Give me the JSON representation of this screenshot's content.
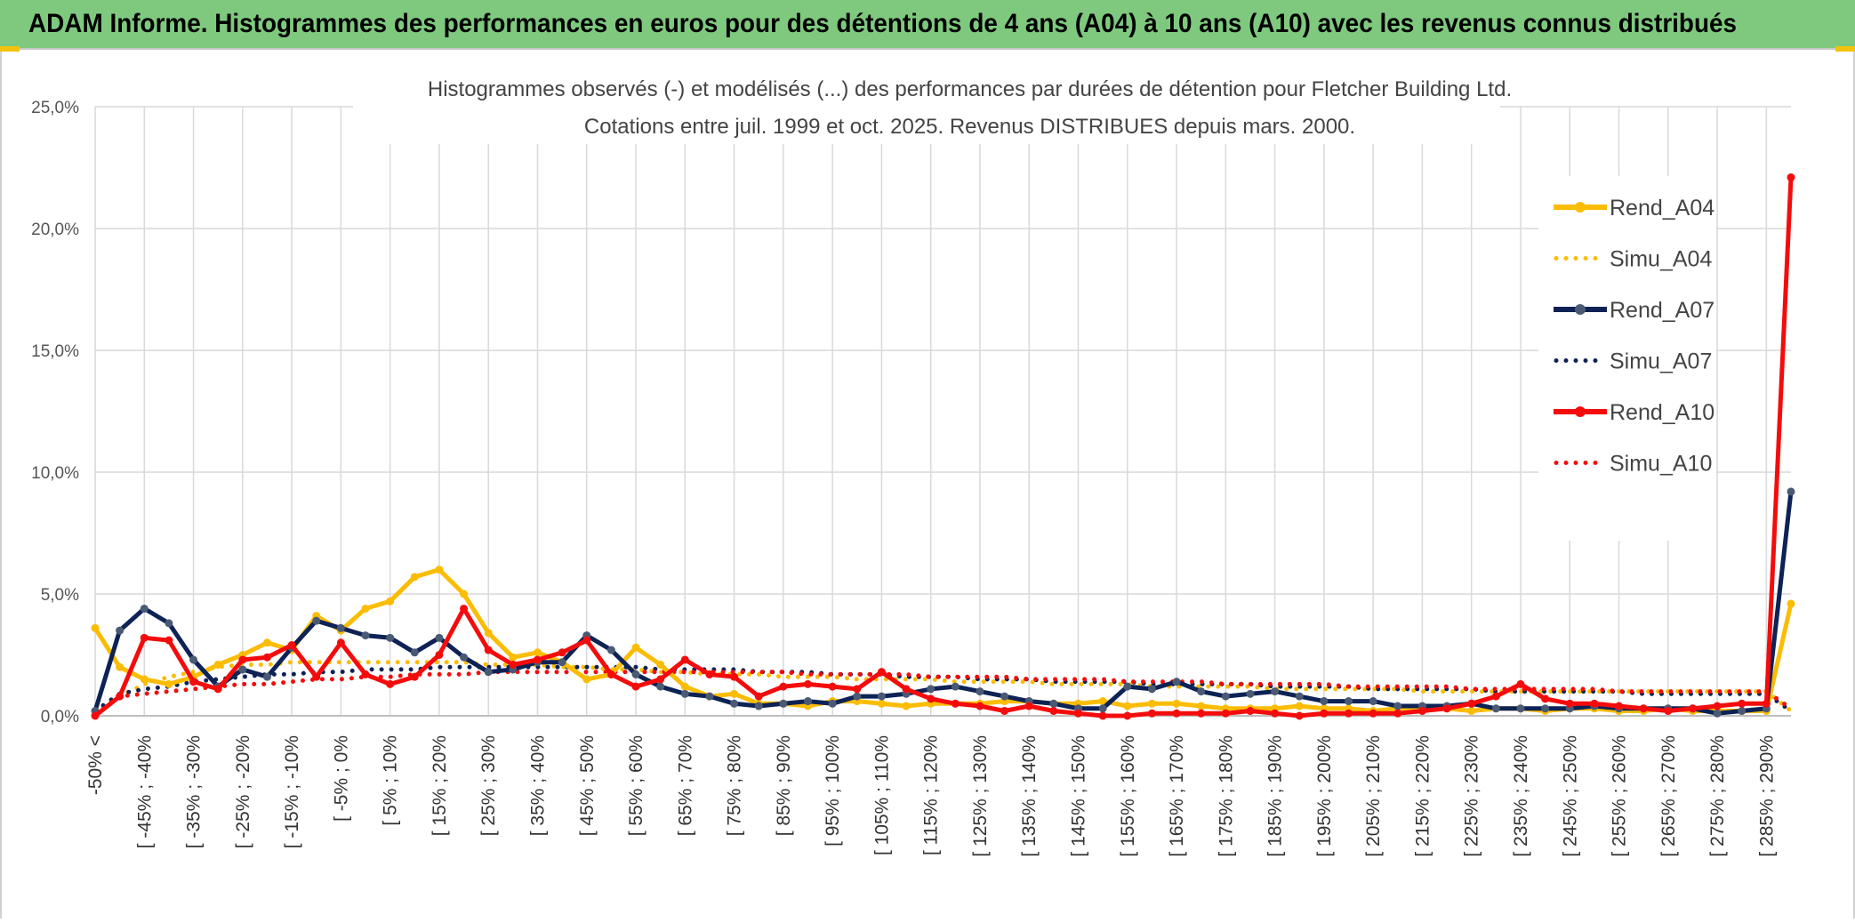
{
  "banner": {
    "title": "ADAM Informe. Histogrammes des performances en euros pour des détentions de 4 ans (A04) à 10 ans (A10) avec les revenus connus distribués"
  },
  "colors": {
    "banner_bg": "#7fc97f",
    "rend_a04": "#fbbc04",
    "simu_a04": "#fbbc04",
    "rend_a07": "#0d2255",
    "simu_a07": "#0d2255",
    "rend_a10": "#f40c0c",
    "simu_a10": "#f40c0c",
    "grid": "#d9d9d9",
    "axis_text": "#555555"
  },
  "chart_data": {
    "type": "line",
    "title": "Histogrammes observés (-) et modélisés (...) des performances par durées de détention pour Fletcher Building Ltd.",
    "subtitle": "Cotations entre juil. 1999 et oct. 2025. Revenus DISTRIBUES depuis mars. 2000.",
    "ylim": [
      0,
      25
    ],
    "yticks": [
      "0,0%",
      "5,0%",
      "10,0%",
      "15,0%",
      "20,0%",
      "25,0%"
    ],
    "grid": true,
    "legend_position": "right",
    "x_labels": [
      "-50% <",
      "[ -45% ; -40%",
      "[ -35% ; -30%",
      "[ -25% ; -20%",
      "[ -15% ; -10%",
      "[ -5% ; 0%",
      "[ 5% ; 10%",
      "[ 15% ; 20%",
      "[ 25% ; 30%",
      "[ 35% ; 40%",
      "[ 45% ; 50%",
      "[ 55% ; 60%",
      "[ 65% ; 70%",
      "[ 75% ; 80%",
      "[ 85% ; 90%",
      "[ 95% ; 100%",
      "[ 105% ; 110%",
      "[ 115% ; 120%",
      "[ 125% ; 130%",
      "[ 135% ; 140%",
      "[ 145% ; 150%",
      "[ 155% ; 160%",
      "[ 165% ; 170%",
      "[ 175% ; 180%",
      "[ 185% ; 190%",
      "[ 195% ; 200%",
      "[ 205% ; 210%",
      "[ 215% ; 220%",
      "[ 225% ; 230%",
      "[ 235% ; 240%",
      "[ 245% ; 250%",
      "[ 255% ; 260%",
      "[ 265% ; 270%",
      "[ 275% ; 280%",
      "[ 285% ; 290%"
    ],
    "n_points": 70,
    "series": [
      {
        "name": "Rend_A04",
        "style": "solid",
        "markers": true,
        "values": [
          3.6,
          2.0,
          1.5,
          1.3,
          1.6,
          2.1,
          2.5,
          3.0,
          2.7,
          4.1,
          3.5,
          4.4,
          4.7,
          5.7,
          6.0,
          5.0,
          3.4,
          2.4,
          2.6,
          2.2,
          1.5,
          1.7,
          2.8,
          2.1,
          1.2,
          0.8,
          0.9,
          0.5,
          0.5,
          0.4,
          0.6,
          0.6,
          0.5,
          0.4,
          0.5,
          0.5,
          0.5,
          0.6,
          0.6,
          0.5,
          0.5,
          0.6,
          0.4,
          0.5,
          0.5,
          0.4,
          0.3,
          0.3,
          0.3,
          0.4,
          0.3,
          0.3,
          0.2,
          0.3,
          0.3,
          0.3,
          0.2,
          0.3,
          0.3,
          0.2,
          0.3,
          0.3,
          0.2,
          0.2,
          0.3,
          0.2,
          0.2,
          0.2,
          0.2,
          4.6
        ]
      },
      {
        "name": "Simu_A04",
        "style": "dotted",
        "markers": false,
        "values": [
          0.1,
          0.8,
          1.3,
          1.6,
          1.8,
          2.0,
          2.1,
          2.1,
          2.2,
          2.2,
          2.2,
          2.2,
          2.2,
          2.2,
          2.2,
          2.2,
          2.1,
          2.1,
          2.1,
          2.0,
          2.0,
          1.9,
          1.9,
          1.8,
          1.8,
          1.7,
          1.7,
          1.7,
          1.6,
          1.6,
          1.6,
          1.5,
          1.5,
          1.5,
          1.5,
          1.4,
          1.4,
          1.4,
          1.4,
          1.3,
          1.3,
          1.3,
          1.3,
          1.2,
          1.2,
          1.2,
          1.2,
          1.2,
          1.1,
          1.1,
          1.1,
          1.1,
          1.1,
          1.1,
          1.0,
          1.0,
          1.0,
          1.0,
          1.0,
          1.0,
          1.0,
          1.0,
          1.0,
          1.0,
          1.0,
          1.0,
          1.0,
          1.0,
          1.0,
          0.2
        ]
      },
      {
        "name": "Rend_A07",
        "style": "solid",
        "markers": true,
        "values": [
          0.2,
          3.5,
          4.4,
          3.8,
          2.3,
          1.2,
          1.9,
          1.6,
          2.8,
          3.9,
          3.6,
          3.3,
          3.2,
          2.6,
          3.2,
          2.4,
          1.8,
          1.9,
          2.2,
          2.2,
          3.3,
          2.7,
          1.7,
          1.2,
          0.9,
          0.8,
          0.5,
          0.4,
          0.5,
          0.6,
          0.5,
          0.8,
          0.8,
          0.9,
          1.1,
          1.2,
          1.0,
          0.8,
          0.6,
          0.5,
          0.3,
          0.3,
          1.2,
          1.1,
          1.4,
          1.0,
          0.8,
          0.9,
          1.0,
          0.8,
          0.6,
          0.6,
          0.6,
          0.4,
          0.4,
          0.4,
          0.5,
          0.3,
          0.3,
          0.3,
          0.3,
          0.4,
          0.3,
          0.3,
          0.3,
          0.3,
          0.1,
          0.2,
          0.3,
          9.2
        ]
      },
      {
        "name": "Simu_A07",
        "style": "dotted",
        "markers": false,
        "values": [
          0.2,
          0.9,
          1.1,
          1.2,
          1.4,
          1.5,
          1.6,
          1.7,
          1.7,
          1.8,
          1.8,
          1.9,
          1.9,
          1.9,
          2.0,
          2.0,
          2.0,
          2.0,
          2.0,
          2.0,
          2.0,
          2.0,
          2.0,
          1.9,
          1.9,
          1.9,
          1.9,
          1.8,
          1.8,
          1.8,
          1.7,
          1.7,
          1.7,
          1.6,
          1.6,
          1.6,
          1.5,
          1.5,
          1.5,
          1.4,
          1.4,
          1.4,
          1.4,
          1.3,
          1.3,
          1.3,
          1.3,
          1.3,
          1.2,
          1.2,
          1.2,
          1.2,
          1.1,
          1.1,
          1.1,
          1.1,
          1.1,
          1.0,
          1.0,
          1.0,
          1.0,
          1.0,
          1.0,
          0.9,
          0.9,
          0.9,
          0.9,
          0.9,
          0.9,
          0.2
        ]
      },
      {
        "name": "Rend_A10",
        "style": "solid",
        "markers": true,
        "values": [
          0.0,
          0.8,
          3.2,
          3.1,
          1.4,
          1.1,
          2.3,
          2.4,
          2.9,
          1.6,
          3.0,
          1.7,
          1.3,
          1.6,
          2.5,
          4.4,
          2.7,
          2.1,
          2.3,
          2.6,
          3.1,
          1.7,
          1.2,
          1.5,
          2.3,
          1.7,
          1.6,
          0.8,
          1.2,
          1.3,
          1.2,
          1.1,
          1.8,
          1.1,
          0.7,
          0.5,
          0.4,
          0.2,
          0.4,
          0.2,
          0.1,
          0.0,
          0.0,
          0.1,
          0.1,
          0.1,
          0.1,
          0.2,
          0.1,
          0.0,
          0.1,
          0.1,
          0.1,
          0.1,
          0.2,
          0.3,
          0.5,
          0.8,
          1.3,
          0.7,
          0.5,
          0.5,
          0.4,
          0.3,
          0.2,
          0.3,
          0.4,
          0.5,
          0.5,
          22.1
        ]
      },
      {
        "name": "Simu_A10",
        "style": "dotted",
        "markers": false,
        "values": [
          0.0,
          0.8,
          0.9,
          1.0,
          1.1,
          1.2,
          1.3,
          1.3,
          1.4,
          1.5,
          1.5,
          1.6,
          1.6,
          1.7,
          1.7,
          1.7,
          1.8,
          1.8,
          1.8,
          1.8,
          1.8,
          1.8,
          1.8,
          1.8,
          1.8,
          1.8,
          1.8,
          1.8,
          1.8,
          1.7,
          1.7,
          1.7,
          1.7,
          1.7,
          1.6,
          1.6,
          1.6,
          1.6,
          1.5,
          1.5,
          1.5,
          1.5,
          1.4,
          1.4,
          1.4,
          1.4,
          1.3,
          1.3,
          1.3,
          1.3,
          1.3,
          1.2,
          1.2,
          1.2,
          1.2,
          1.2,
          1.1,
          1.1,
          1.1,
          1.1,
          1.1,
          1.1,
          1.0,
          1.0,
          1.0,
          1.0,
          1.0,
          1.0,
          1.0,
          0.3
        ]
      }
    ]
  }
}
